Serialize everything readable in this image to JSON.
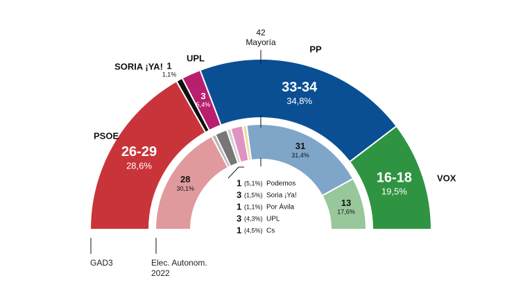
{
  "chart_data": {
    "type": "parliament",
    "majority": 42,
    "majority_label": "Mayoría",
    "outer": {
      "label": "GAD3",
      "series": [
        {
          "name": "PSOE",
          "color": "#c9343a",
          "seats": [
            26,
            29
          ],
          "seats_label": "26-29",
          "percent": 28.6,
          "percent_label": "28,6%"
        },
        {
          "name": "SORIA ¡YA!",
          "color": "#111111",
          "seats": 1,
          "percent": 1.1,
          "percent_label": "1,1%"
        },
        {
          "name": "UPL",
          "color": "#b8206f",
          "seats": 3,
          "percent": 5.4,
          "percent_label": "5,4%"
        },
        {
          "name": "PP",
          "color": "#0a4f94",
          "seats": [
            33,
            34
          ],
          "seats_label": "33-34",
          "percent": 34.8,
          "percent_label": "34,8%"
        },
        {
          "name": "VOX",
          "color": "#2f9441",
          "seats": [
            16,
            18
          ],
          "seats_label": "16-18",
          "percent": 19.5,
          "percent_label": "19,5%"
        }
      ]
    },
    "inner": {
      "label": "Elec. Autonom. 2022",
      "series": [
        {
          "color": "#e09a9d",
          "seats": 28,
          "percent": 30.1,
          "percent_label": "30,1%"
        },
        {
          "name": "Podemos",
          "color": "#b4b4b4",
          "seats": 1,
          "percent": 5.1,
          "percent_label": "(5,1%)"
        },
        {
          "name": "Soria ¡Ya!",
          "color": "#777777",
          "seats": 3,
          "percent": 1.5,
          "percent_label": "(1,5%)"
        },
        {
          "name": "Por Ávila",
          "color": "#cfcfcf",
          "seats": 1,
          "percent": 1.1,
          "percent_label": "(1,1%)"
        },
        {
          "name": "UPL",
          "color": "#df93c0",
          "seats": 3,
          "percent": 4.3,
          "percent_label": "(4,3%)"
        },
        {
          "name": "Cs",
          "color": "#f1dca0",
          "seats": 1,
          "percent": 4.5,
          "percent_label": "(4,5%)"
        },
        {
          "color": "#7fa6c9",
          "seats": 31,
          "percent": 31.4,
          "percent_label": "31,4%"
        },
        {
          "color": "#97c79a",
          "seats": 13,
          "percent": 17.6,
          "percent_label": "17,6%"
        }
      ]
    }
  }
}
